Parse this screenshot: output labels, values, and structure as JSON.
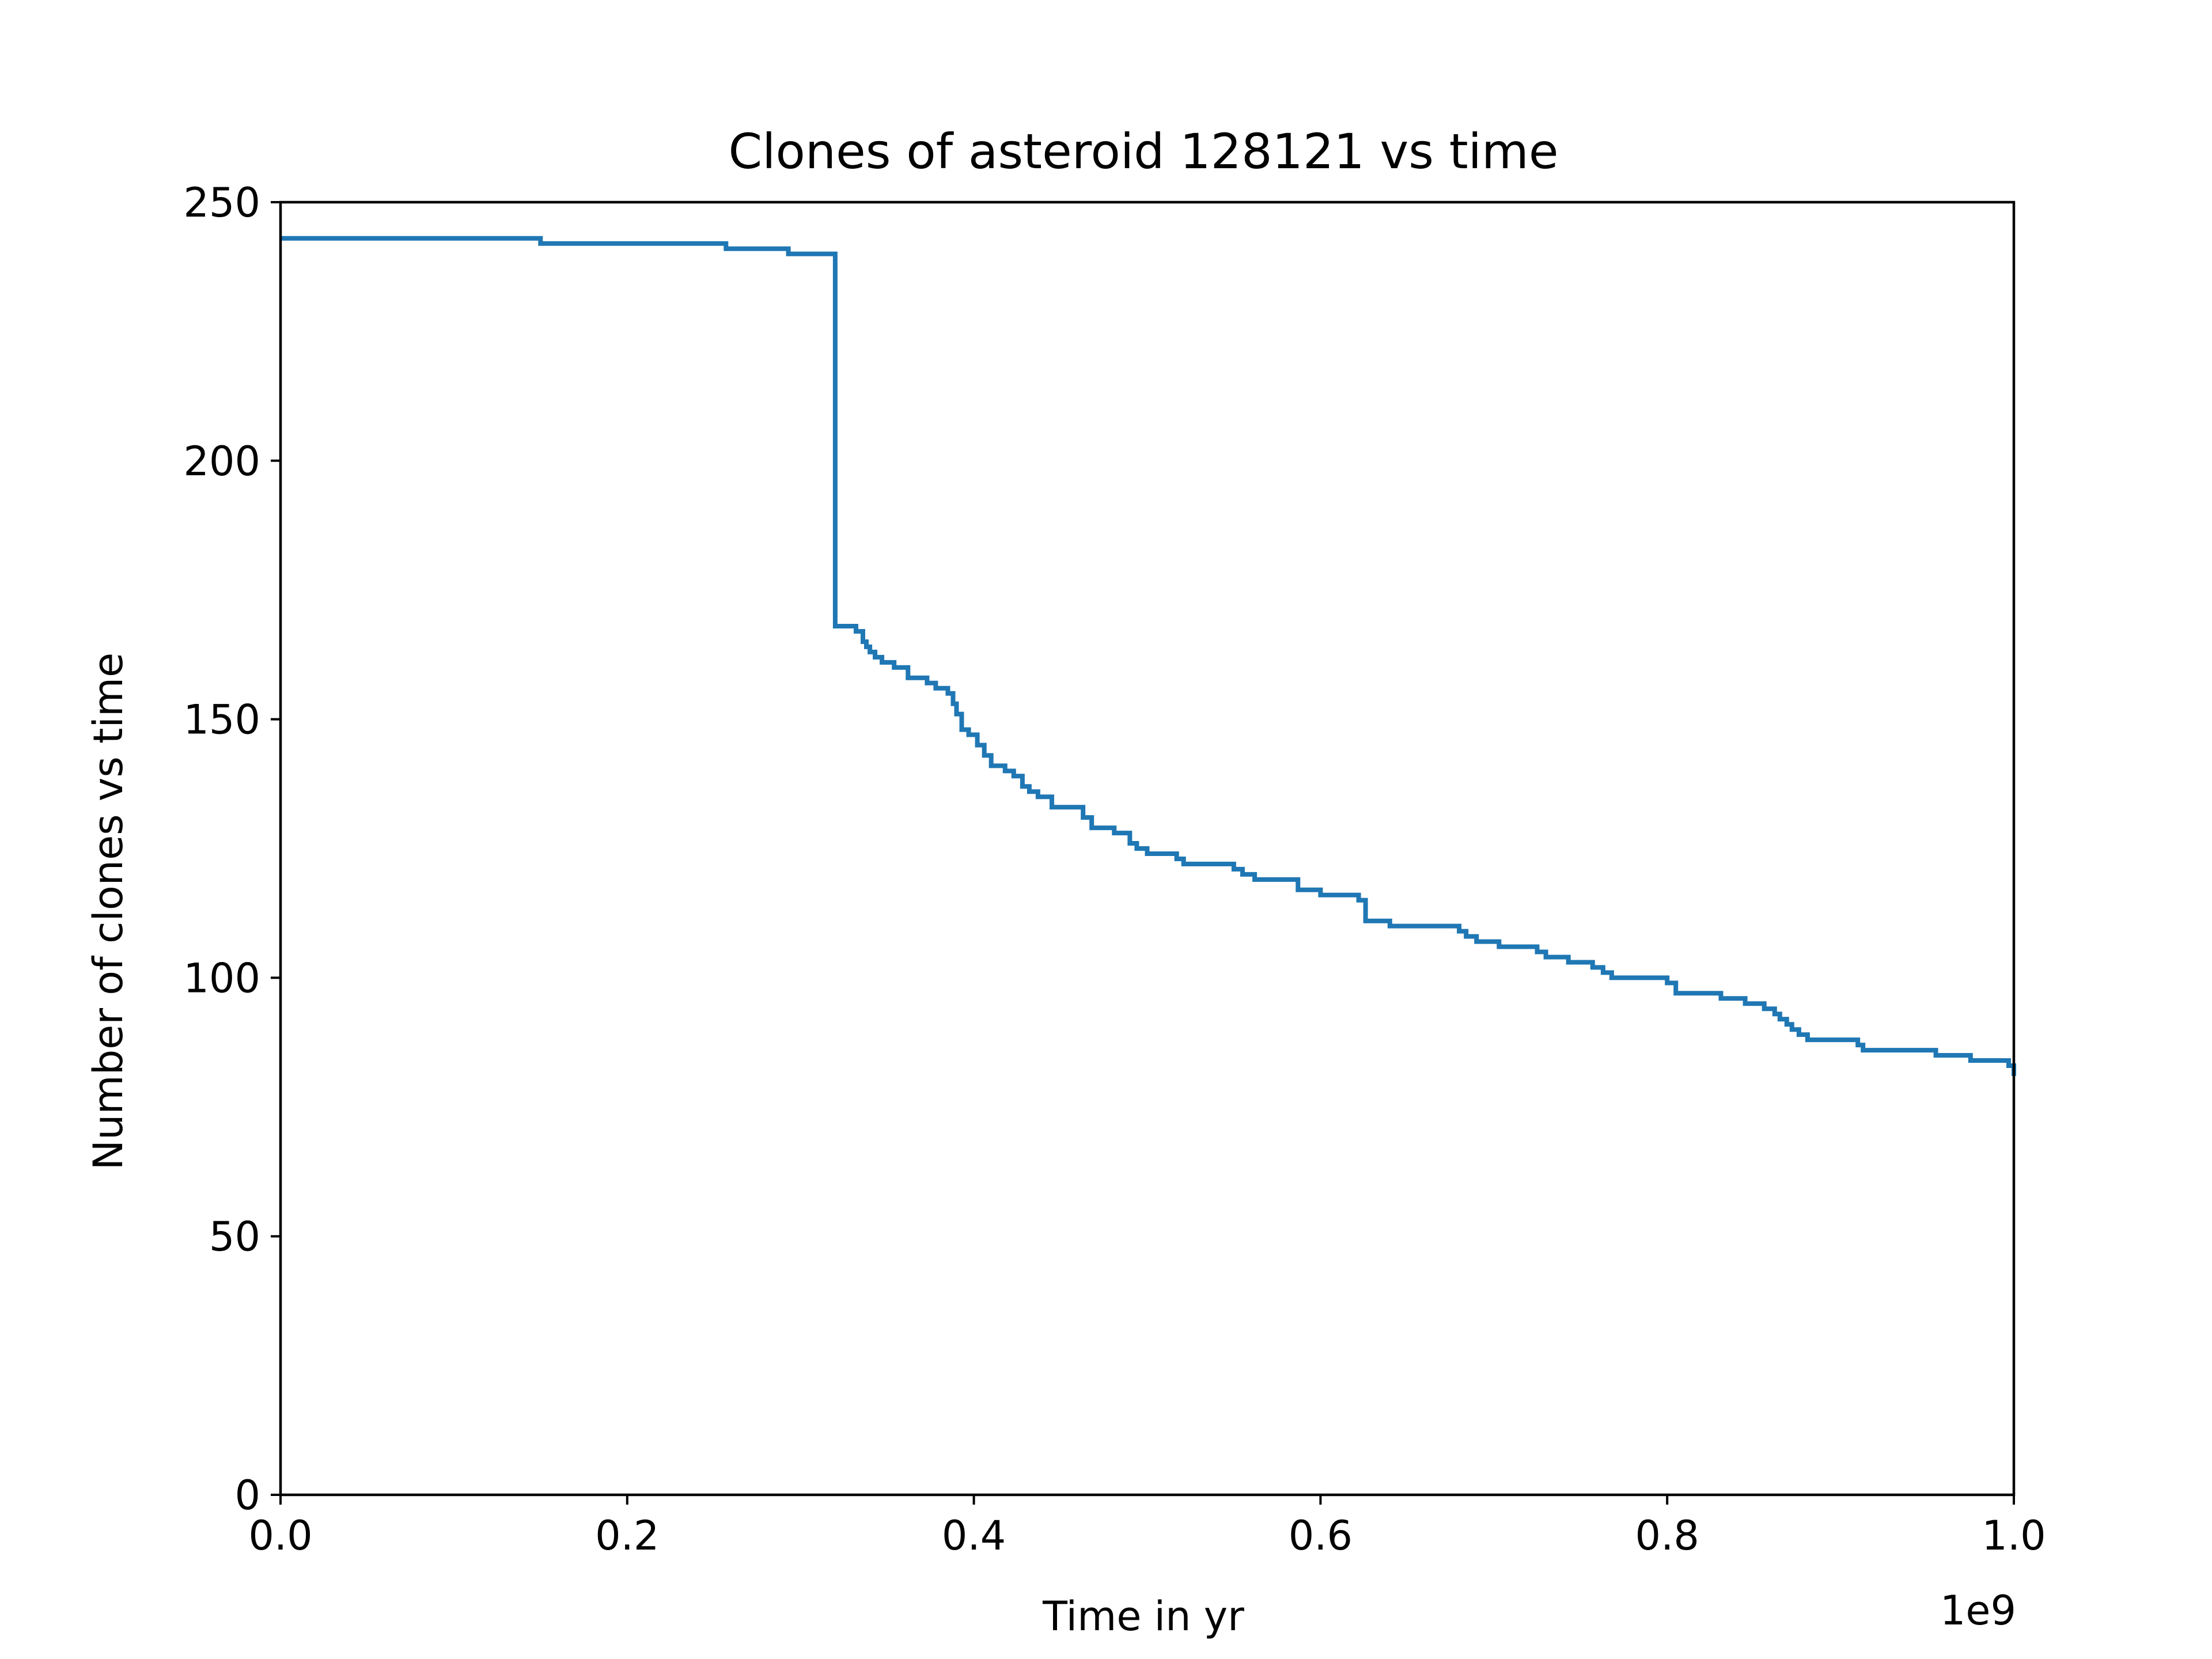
{
  "chart_data": {
    "type": "line",
    "drawstyle": "steps",
    "title": "Clones of asteroid 128121 vs time",
    "xlabel": "Time in yr",
    "ylabel": "Number of clones vs time",
    "x_offset_label": "1e9",
    "xlim": [
      0,
      1000000000
    ],
    "ylim": [
      0,
      250
    ],
    "x_ticks": [
      0,
      200000000,
      400000000,
      600000000,
      800000000,
      1000000000
    ],
    "x_tick_labels": [
      "0.0",
      "0.2",
      "0.4",
      "0.6",
      "0.8",
      "1.0"
    ],
    "y_ticks": [
      0,
      50,
      100,
      150,
      200,
      250
    ],
    "y_tick_labels": [
      "0",
      "50",
      "100",
      "150",
      "200",
      "250"
    ],
    "grid": false,
    "legend": "none",
    "series_color": "#1f77b4",
    "series": [
      {
        "x": [
          0,
          150000000,
          257000000,
          293000000,
          320000000,
          332000000,
          336000000,
          338000000,
          340000000,
          343000000,
          347000000,
          354000000,
          362000000,
          373000000,
          378000000,
          385000000,
          388000000,
          390000000,
          393000000,
          397000000,
          402000000,
          406000000,
          410000000,
          418000000,
          423000000,
          428000000,
          432000000,
          437000000,
          445000000,
          463000000,
          468000000,
          481000000,
          490000000,
          494000000,
          500000000,
          517000000,
          521000000,
          550000000,
          555000000,
          562000000,
          587000000,
          600000000,
          622000000,
          626000000,
          640000000,
          680000000,
          684000000,
          690000000,
          703000000,
          725000000,
          730000000,
          743000000,
          757000000,
          763000000,
          768000000,
          800000000,
          805000000,
          831000000,
          845000000,
          856000000,
          862000000,
          865000000,
          869000000,
          872000000,
          876000000,
          881000000,
          910000000,
          913000000,
          955000000,
          975000000,
          997000000,
          1000000000
        ],
        "y": [
          243,
          242,
          241,
          240,
          168,
          167,
          165,
          164,
          163,
          162,
          161,
          160,
          158,
          157,
          156,
          155,
          153,
          151,
          148,
          147,
          145,
          143,
          141,
          140,
          139,
          137,
          136,
          135,
          133,
          131,
          129,
          128,
          126,
          125,
          124,
          123,
          122,
          121,
          120,
          119,
          117,
          116,
          115,
          111,
          110,
          109,
          108,
          107,
          106,
          105,
          104,
          103,
          102,
          101,
          100,
          99,
          97,
          96,
          95,
          94,
          93,
          92,
          91,
          90,
          89,
          88,
          87,
          86,
          85,
          84,
          83,
          81
        ]
      }
    ]
  }
}
